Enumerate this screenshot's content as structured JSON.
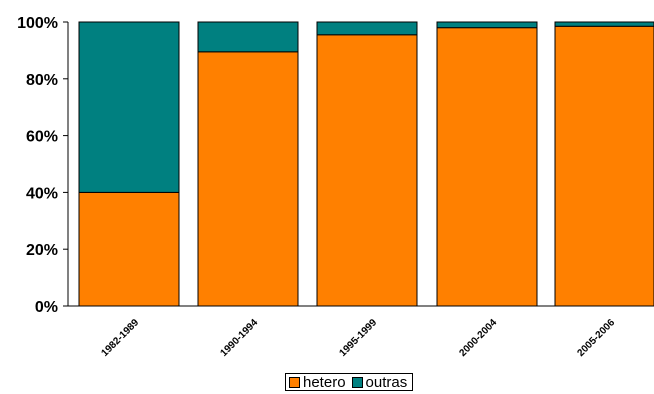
{
  "chart_data": {
    "type": "bar",
    "stacked": true,
    "categories": [
      "1982-1989",
      "1990-1994",
      "1995-1999",
      "2000-2004",
      "2005-2006"
    ],
    "series": [
      {
        "name": "hetero",
        "color": "#ff8000",
        "values": [
          40,
          89.5,
          95.5,
          98,
          98.5
        ]
      },
      {
        "name": "outras",
        "color": "#008080",
        "values": [
          60,
          10.5,
          4.5,
          2,
          1.5
        ]
      }
    ],
    "ylim": [
      0,
      100
    ],
    "y_ticks": [
      "0%",
      "20%",
      "40%",
      "60%",
      "80%",
      "100%"
    ],
    "y_tick_values": [
      0,
      20,
      40,
      60,
      80,
      100
    ],
    "grid": false,
    "legend_position": "bottom-center"
  }
}
